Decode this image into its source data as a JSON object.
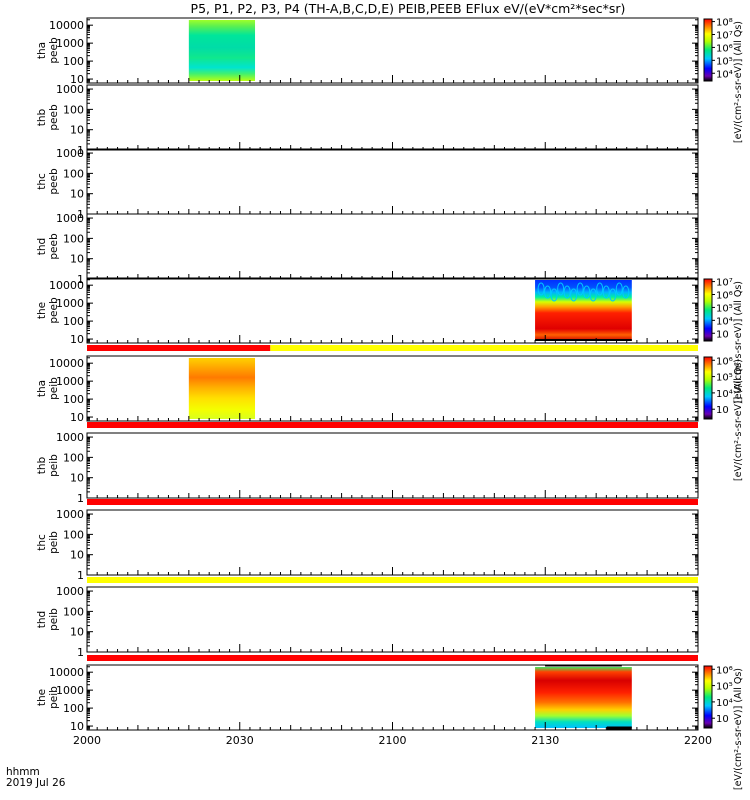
{
  "chart_data": {
    "type": "heatmap",
    "title": "P5, P1, P2, P3, P4 (TH-A,B,C,D,E) PEIB,PEEB EFlux eV/(eV*cm²*sec*sr)",
    "x_ticks": [
      "2000",
      "2030",
      "2100",
      "2130",
      "2200"
    ],
    "x_tick_minutes": [
      0,
      30,
      60,
      90,
      120
    ],
    "xlim_minutes": [
      0,
      120
    ],
    "x_label_top": "hhmm",
    "x_label_bottom": "2019 Jul 26",
    "grid": false,
    "panels": [
      {
        "name": "peeb-a",
        "ylabel": [
          "tha",
          "peeb"
        ],
        "yticks": [
          "10000",
          "1000",
          "100",
          "10"
        ],
        "ylog": [
          0.78,
          4.4
        ],
        "data_blocks": [
          {
            "t": [
              20,
              33
            ],
            "style": "teal-green"
          }
        ],
        "colorbar": {
          "label": "[eV/(cm²-s-sr-eV)] (All Qs)",
          "ticks": [
            "10⁸",
            "10⁷",
            "10⁶",
            "10⁵",
            "10⁴"
          ],
          "exp": [
            8,
            7,
            6,
            5,
            4
          ]
        }
      },
      {
        "name": "peeb-b",
        "ylabel": [
          "thb",
          "peeb"
        ],
        "yticks": [
          "1000",
          "100",
          "10",
          "1"
        ],
        "ylog": [
          0,
          3.2
        ],
        "data_blocks": []
      },
      {
        "name": "peeb-c",
        "ylabel": [
          "thc",
          "peeb"
        ],
        "yticks": [
          "1000",
          "100",
          "10",
          "1"
        ],
        "ylog": [
          0,
          3.2
        ],
        "data_blocks": []
      },
      {
        "name": "peeb-d",
        "ylabel": [
          "thd",
          "peeb"
        ],
        "yticks": [
          "1000",
          "100",
          "10",
          "1"
        ],
        "ylog": [
          0,
          3.2
        ],
        "data_blocks": []
      },
      {
        "name": "peeb-e",
        "ylabel": [
          "the",
          "peeb"
        ],
        "yticks": [
          "10000",
          "1000",
          "100",
          "10"
        ],
        "ylog": [
          0.78,
          4.4
        ],
        "data_blocks": [
          {
            "t": [
              88,
              107
            ],
            "style": "red-core"
          }
        ],
        "colorbar": {
          "label": "[eV/(cm²-s-sr-eV)] (All Qs)",
          "ticks": [
            "10⁷",
            "10⁶",
            "10⁵",
            "10⁴",
            "10⁳"
          ],
          "exp": [
            7,
            6,
            5,
            4,
            3
          ]
        }
      },
      {
        "name": "peib-a",
        "ylabel": [
          "tha",
          "peib"
        ],
        "yticks": [
          "10000",
          "1000",
          "100",
          "10"
        ],
        "ylog": [
          0.78,
          4.4
        ],
        "data_blocks": [
          {
            "t": [
              20,
              33
            ],
            "style": "yellow-orange"
          }
        ],
        "colorbar": {
          "label": "[eV/(cm²-s-sr-eV)] (All Qs)",
          "ticks": [
            "10⁶",
            "10⁵",
            "10⁴",
            "10⁳"
          ],
          "exp": [
            6,
            5,
            4,
            3
          ]
        }
      },
      {
        "name": "peib-b",
        "ylabel": [
          "thb",
          "peib"
        ],
        "yticks": [
          "1000",
          "100",
          "10",
          "1"
        ],
        "ylog": [
          0,
          3.2
        ],
        "data_blocks": []
      },
      {
        "name": "peib-c",
        "ylabel": [
          "thc",
          "peib"
        ],
        "yticks": [
          "1000",
          "100",
          "10",
          "1"
        ],
        "ylog": [
          0,
          3.2
        ],
        "data_blocks": []
      },
      {
        "name": "peib-d",
        "ylabel": [
          "thd",
          "peib"
        ],
        "yticks": [
          "1000",
          "100",
          "10",
          "1"
        ],
        "ylog": [
          0,
          3.2
        ],
        "data_blocks": []
      },
      {
        "name": "peib-e",
        "ylabel": [
          "the",
          "peib"
        ],
        "yticks": [
          "10000",
          "1000",
          "100",
          "10"
        ],
        "ylog": [
          0.78,
          4.4
        ],
        "data_blocks": [
          {
            "t": [
              88,
              107
            ],
            "style": "red-wide"
          }
        ],
        "colorbar": {
          "label": "[eV/(cm²-s-sr-eV)] (All Qs)",
          "ticks": [
            "10⁶",
            "10⁵",
            "10⁴",
            "10⁳"
          ],
          "exp": [
            6,
            5,
            4,
            3
          ]
        }
      }
    ],
    "status_bars": [
      {
        "after_panel": 4,
        "segments": [
          {
            "t": [
              0,
              36
            ],
            "color": "#ff0000"
          },
          {
            "t": [
              36,
              120
            ],
            "color": "#ffff00"
          }
        ]
      },
      {
        "after_panel": 5,
        "segments": [
          {
            "t": [
              0,
              120
            ],
            "color": "#ff0000"
          }
        ]
      },
      {
        "after_panel": 6,
        "segments": [
          {
            "t": [
              0,
              120
            ],
            "color": "#ff0000"
          }
        ]
      },
      {
        "after_panel": 7,
        "segments": [
          {
            "t": [
              0,
              120
            ],
            "color": "#ffff00"
          }
        ]
      },
      {
        "after_panel": 8,
        "segments": [
          {
            "t": [
              0,
              120
            ],
            "color": "#ff0000"
          }
        ]
      }
    ]
  }
}
